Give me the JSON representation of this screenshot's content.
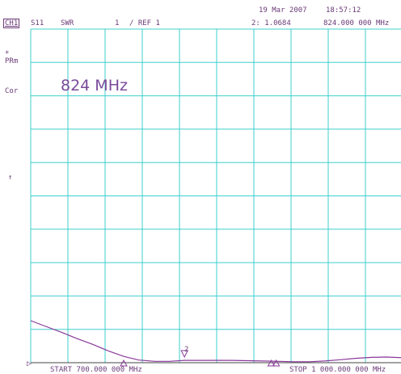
{
  "header": {
    "date": "19 Mar 2007",
    "time": "18:57:12",
    "channel": "CH1",
    "parameter": "S11",
    "format": "SWR",
    "scale": "1",
    "ref": "/ REF 1",
    "marker_readout": "2: 1.0684",
    "marker_freq": "824.000 000 MHz"
  },
  "left_annotations": {
    "prm_star": "*",
    "prm": "PRm",
    "cor": "Cor",
    "ref_arrow": "↑"
  },
  "annotation": {
    "text": "824 MHz"
  },
  "footer": {
    "start": "START  700.000 000 MHz",
    "stop": "STOP 1 000.000 000 MHz"
  },
  "markers": {
    "m2_label": "2",
    "ref_pointer": "▷"
  },
  "colors": {
    "grid": "#3fcfcf",
    "trace": "#8a3a9a",
    "text": "#6b3a78",
    "background": "#ffffff"
  },
  "chart_data": {
    "type": "line",
    "x_unit": "MHz",
    "y_unit": "SWR",
    "xlim": [
      700,
      1000
    ],
    "ylim": [
      1,
      11
    ],
    "grid": true,
    "divisions": {
      "x": 10,
      "y": 10
    },
    "series": [
      {
        "x": [
          700,
          712,
          725,
          737,
          750,
          762,
          775,
          787,
          800,
          812,
          824,
          837,
          850,
          862,
          875,
          887,
          900,
          912,
          925,
          937,
          950,
          962,
          975,
          987,
          1000
        ],
        "values": [
          2.26,
          2.09,
          1.91,
          1.73,
          1.55,
          1.36,
          1.19,
          1.08,
          1.04,
          1.04,
          1.07,
          1.07,
          1.07,
          1.07,
          1.06,
          1.05,
          1.04,
          1.03,
          1.03,
          1.05,
          1.09,
          1.13,
          1.16,
          1.17,
          1.15
        ]
      }
    ],
    "markers": [
      {
        "id": "1",
        "x": 775,
        "type": "inactive"
      },
      {
        "id": "2",
        "x": 824,
        "value": 1.0684,
        "type": "active"
      },
      {
        "id": "3",
        "x": 894,
        "type": "inactive"
      },
      {
        "id": "4",
        "x": 898,
        "type": "inactive"
      }
    ]
  }
}
